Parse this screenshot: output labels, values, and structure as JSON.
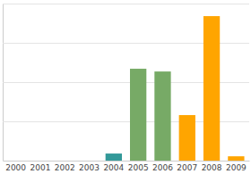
{
  "chart_data": {
    "type": "bar",
    "categories": [
      "2000",
      "2001",
      "2002",
      "2003",
      "2004",
      "2005",
      "2006",
      "2007",
      "2008",
      "2009"
    ],
    "values": [
      0,
      0,
      0,
      0,
      0.18,
      2.34,
      2.27,
      1.16,
      3.68,
      0.11
    ],
    "colors": [
      "#339999",
      "#339999",
      "#339999",
      "#339999",
      "#339999",
      "#77aa66",
      "#77aa66",
      "#ffa500",
      "#ffa500",
      "#ffa500"
    ],
    "ylim": [
      0,
      4
    ],
    "yticks": [
      0,
      1,
      2,
      3,
      4
    ],
    "grid": true,
    "tick_labels": "x"
  }
}
